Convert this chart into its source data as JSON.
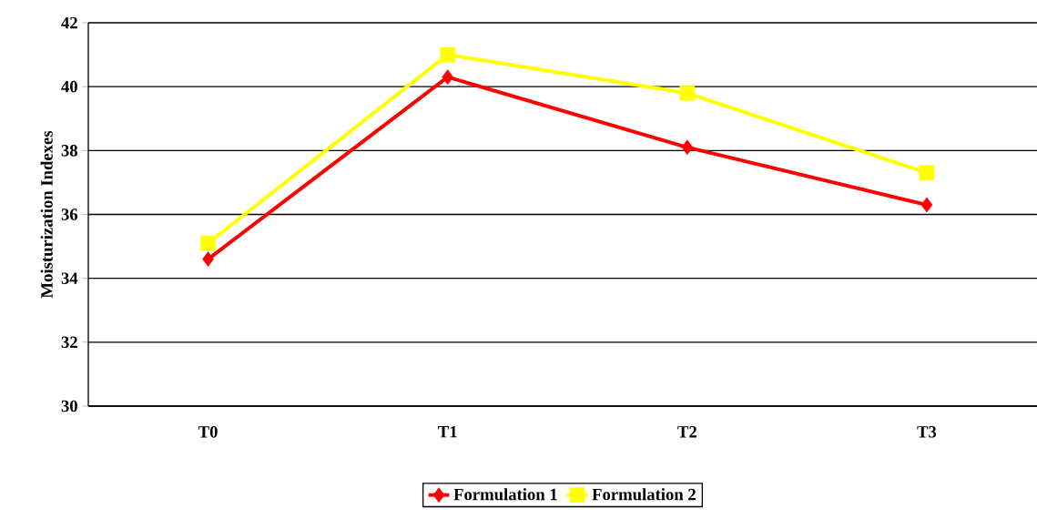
{
  "chart_data": {
    "type": "line",
    "ylabel": "Moisturization Indexes",
    "categories": [
      "T0",
      "T1",
      "T2",
      "T3"
    ],
    "series": [
      {
        "name": "Formulation 1",
        "color": "#ff0000",
        "marker": "diamond",
        "values": [
          34.6,
          40.3,
          38.1,
          36.3
        ]
      },
      {
        "name": "Formulation 2",
        "color": "#ffff00",
        "marker": "square",
        "values": [
          35.1,
          41.0,
          39.8,
          37.3
        ]
      }
    ],
    "ylim": [
      30,
      42
    ],
    "yticks": [
      30,
      32,
      34,
      36,
      38,
      40,
      42
    ],
    "grid": "y",
    "legend": "bottom",
    "line_style": "solid"
  }
}
